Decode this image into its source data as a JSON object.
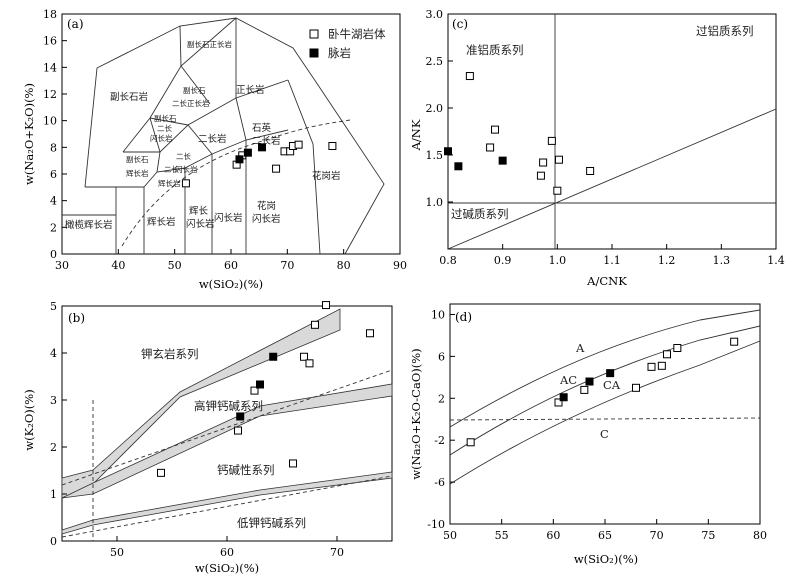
{
  "legend": {
    "open_label": "卧牛湖岩体",
    "filled_label": "脉岩"
  },
  "panel_a": {
    "tag": "(a)",
    "xlabel": "w(SiO₂)(%)",
    "ylabel": "w(Na₂O+K₂O)(%)",
    "xticks": [
      "30",
      "40",
      "50",
      "60",
      "70",
      "80",
      "90"
    ],
    "yticks": [
      "0",
      "2",
      "4",
      "6",
      "8",
      "10",
      "12",
      "14",
      "16",
      "18"
    ],
    "fields": {
      "fsyenite": "副长石正长岩",
      "fsyenite2": "副长石岩",
      "syenite": "正长岩",
      "fmonz1": "副长石",
      "fmonz2": "二长正长岩",
      "fmonzd1": "副长石",
      "fmonzd2": "二长",
      "fmonzd3": "闪长岩",
      "monzonite": "二长岩",
      "qmonz1": "石英",
      "qmonz2": "二长岩",
      "fgab1": "副长石",
      "fgab2": "辉长岩",
      "mgab1": "二长",
      "mgab2": "辉长岩",
      "mdio1": "二长",
      "mdio2": "闪长岩",
      "granite": "花岗岩",
      "olgab": "橄榄辉长岩",
      "gabbro": "辉长岩",
      "gdio1": "辉长",
      "gdio2": "闪长岩",
      "diorite": "闪长岩",
      "gd1": "花岗",
      "gd2": "闪长岩"
    }
  },
  "panel_b": {
    "tag": "(b)",
    "xlabel": "w(SiO₂)(%)",
    "ylabel": "w(K₂O)(%)",
    "xticks": [
      "50",
      "60",
      "70"
    ],
    "yticks": [
      "0",
      "1",
      "2",
      "3",
      "4",
      "5"
    ],
    "series_labels": [
      "钾玄岩系列",
      "高钾钙碱系列",
      "钙碱性系列",
      "低钾钙碱系列"
    ]
  },
  "panel_c": {
    "tag": "(c)",
    "xlabel": "A/CNK",
    "ylabel": "A/NK",
    "xticks": [
      "0.8",
      "0.9",
      "1.0",
      "1.1",
      "1.2",
      "1.3",
      "1.4"
    ],
    "yticks": [
      "1.0",
      "1.5",
      "2.0",
      "2.5",
      "3.0"
    ],
    "field_labels": [
      "过铝质系列",
      "准铝质系列",
      "过碱质系列"
    ]
  },
  "panel_d": {
    "tag": "(d)",
    "xlabel": "w(SiO₂)(%)",
    "ylabel": "w(Na₂O+K₂O-CaO)(%)",
    "xticks": [
      "50",
      "55",
      "60",
      "65",
      "70",
      "75",
      "80"
    ],
    "yticks": [
      "-10",
      "-6",
      "-2",
      "2",
      "6",
      "10"
    ],
    "curve_labels": [
      "A",
      "AC",
      "CA",
      "C"
    ]
  },
  "chart_data": [
    {
      "type": "scatter",
      "panel": "a",
      "xlabel": "w(SiO₂)(%)",
      "ylabel": "w(Na₂O+K₂O)(%)",
      "xlim": [
        30,
        90
      ],
      "ylim": [
        0,
        18
      ],
      "series": [
        {
          "name": "卧牛湖岩体",
          "marker": "open-square",
          "points": [
            [
              52,
              5.3
            ],
            [
              61,
              6.7
            ],
            [
              62,
              7.4
            ],
            [
              68,
              6.4
            ],
            [
              69.5,
              7.7
            ],
            [
              70.5,
              7.7
            ],
            [
              71,
              8.1
            ],
            [
              72,
              8.2
            ],
            [
              78,
              8.1
            ]
          ]
        },
        {
          "name": "脉岩",
          "marker": "filled-square",
          "points": [
            [
              61.5,
              7.1
            ],
            [
              63,
              7.6
            ],
            [
              65.5,
              8.0
            ]
          ]
        }
      ]
    },
    {
      "type": "scatter",
      "panel": "b",
      "xlabel": "w(SiO₂)(%)",
      "ylabel": "w(K₂O)(%)",
      "xlim": [
        45,
        75
      ],
      "ylim": [
        0,
        5
      ],
      "series": [
        {
          "name": "卧牛湖岩体",
          "marker": "open-square",
          "points": [
            [
              54,
              1.45
            ],
            [
              61,
              2.35
            ],
            [
              62.5,
              3.2
            ],
            [
              66,
              1.65
            ],
            [
              67,
              3.92
            ],
            [
              67.5,
              3.78
            ],
            [
              68,
              4.6
            ],
            [
              69,
              5.02
            ],
            [
              73,
              4.42
            ]
          ]
        },
        {
          "name": "脉岩",
          "marker": "filled-square",
          "points": [
            [
              61.2,
              2.65
            ],
            [
              63,
              3.33
            ],
            [
              64.2,
              3.92
            ]
          ]
        }
      ]
    },
    {
      "type": "scatter",
      "panel": "c",
      "xlabel": "A/CNK",
      "ylabel": "A/NK",
      "xlim": [
        0.8,
        1.4
      ],
      "ylim": [
        0.5,
        3.0
      ],
      "series": [
        {
          "name": "卧牛湖岩体",
          "marker": "open-square",
          "points": [
            [
              0.84,
              2.34
            ],
            [
              0.886,
              1.77
            ],
            [
              0.877,
              1.58
            ],
            [
              0.97,
              1.28
            ],
            [
              0.974,
              1.42
            ],
            [
              0.99,
              1.65
            ],
            [
              1.0,
              1.12
            ],
            [
              1.003,
              1.45
            ],
            [
              1.06,
              1.33
            ]
          ]
        },
        {
          "name": "脉岩",
          "marker": "filled-square",
          "points": [
            [
              0.8,
              1.54
            ],
            [
              0.819,
              1.38
            ],
            [
              0.9,
              1.44
            ]
          ]
        }
      ]
    },
    {
      "type": "scatter",
      "panel": "d",
      "xlabel": "w(SiO₂)(%)",
      "ylabel": "w(Na₂O+K₂O-CaO)(%)",
      "xlim": [
        50,
        80
      ],
      "ylim": [
        -10,
        11
      ],
      "series": [
        {
          "name": "卧牛湖岩体",
          "marker": "open-square",
          "points": [
            [
              52,
              -2.2
            ],
            [
              60.5,
              1.6
            ],
            [
              63,
              2.8
            ],
            [
              68,
              3.0
            ],
            [
              69.5,
              5.0
            ],
            [
              70.5,
              5.1
            ],
            [
              71,
              6.2
            ],
            [
              72,
              6.8
            ],
            [
              77.5,
              7.4
            ]
          ]
        },
        {
          "name": "脉岩",
          "marker": "filled-square",
          "points": [
            [
              61,
              2.1
            ],
            [
              63.5,
              3.6
            ],
            [
              65.5,
              4.4
            ]
          ]
        }
      ]
    }
  ]
}
